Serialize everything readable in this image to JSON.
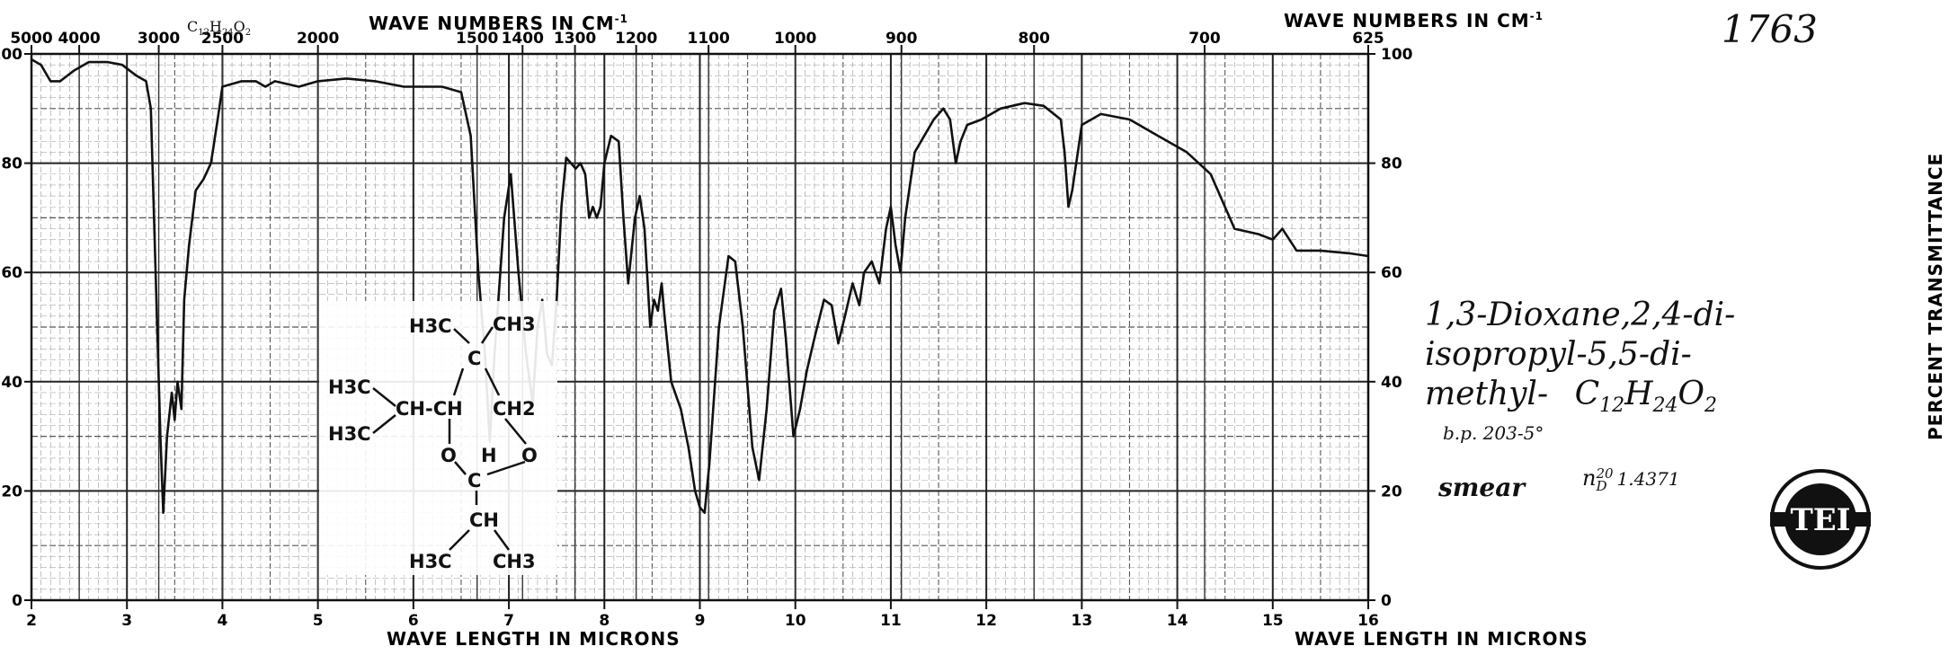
{
  "spectrum_number": "1763",
  "formula_header": {
    "main": "C",
    "s1": "12",
    "h": "H",
    "s2": "24",
    "o": "O",
    "s3": "2"
  },
  "top_axis_title": "WAVE NUMBERS IN CM",
  "top_axis_sup": "-1",
  "bottom_axis_title": "WAVE LENGTH IN MICRONS",
  "right_axis_title": "PERCENT TRANSMITTANCE",
  "compound": {
    "line1": "1,3-Dioxane,2,4-di-",
    "line2": "isopropyl-5,5-di-",
    "line3_prefix": "methyl-",
    "formula_c": "C",
    "formula_c_sub": "12",
    "formula_h": "H",
    "formula_h_sub": "24",
    "formula_o": "O",
    "formula_o_sub": "2",
    "bp": "b.p. 203-5°",
    "sample": "smear",
    "n_label": "n",
    "n_sup": "20",
    "n_sub": "D",
    "n_value": "1.4371"
  },
  "structure": {
    "top_left": "H3C",
    "top_right": "CH3",
    "center_c": "C",
    "left_upper": "H3C",
    "left_lower": "H3C",
    "ring_left": "CH-CH",
    "ring_right": "CH2",
    "o_left": "O",
    "o_right": "O",
    "acetal_h": "H",
    "acetal_c": "C",
    "lower_ch": "CH",
    "bottom_left": "H3C",
    "bottom_right": "CH3"
  },
  "badge_text": "TEI",
  "chart_data": {
    "type": "line",
    "xlabel": "WAVE LENGTH IN MICRONS",
    "ylabel": "PERCENT TRANSMITTANCE",
    "xlim": [
      2,
      16
    ],
    "ylim": [
      0,
      100
    ],
    "x_ticks": [
      "2",
      "3",
      "4",
      "5",
      "6",
      "7",
      "8",
      "9",
      "10",
      "11",
      "12",
      "13",
      "14",
      "15",
      "16"
    ],
    "y_ticks": [
      "0",
      "20",
      "40",
      "60",
      "80",
      "100"
    ],
    "top_ticks": [
      {
        "label": "5000",
        "um": 2.0
      },
      {
        "label": "4000",
        "um": 2.5
      },
      {
        "label": "3000",
        "um": 3.333
      },
      {
        "label": "2500",
        "um": 4.0
      },
      {
        "label": "2000",
        "um": 5.0
      },
      {
        "label": "1500",
        "um": 6.667
      },
      {
        "label": "1400",
        "um": 7.143
      },
      {
        "label": "1300",
        "um": 7.692
      },
      {
        "label": "1200",
        "um": 8.333
      },
      {
        "label": "1100",
        "um": 9.091
      },
      {
        "label": "1000",
        "um": 10.0
      },
      {
        "label": "900",
        "um": 11.111
      },
      {
        "label": "800",
        "um": 12.5
      },
      {
        "label": "700",
        "um": 14.286
      },
      {
        "label": "625",
        "um": 16.0
      }
    ],
    "grid": true,
    "series": [
      {
        "points": [
          [
            2.0,
            99
          ],
          [
            2.1,
            98
          ],
          [
            2.2,
            95
          ],
          [
            2.3,
            95
          ],
          [
            2.45,
            97
          ],
          [
            2.6,
            98.5
          ],
          [
            2.8,
            98.5
          ],
          [
            2.95,
            98
          ],
          [
            3.1,
            96
          ],
          [
            3.2,
            95
          ],
          [
            3.25,
            90
          ],
          [
            3.3,
            60
          ],
          [
            3.35,
            30
          ],
          [
            3.38,
            16
          ],
          [
            3.42,
            30
          ],
          [
            3.47,
            38
          ],
          [
            3.5,
            33
          ],
          [
            3.53,
            40
          ],
          [
            3.57,
            35
          ],
          [
            3.6,
            55
          ],
          [
            3.65,
            65
          ],
          [
            3.72,
            75
          ],
          [
            3.8,
            77
          ],
          [
            3.88,
            80
          ],
          [
            3.95,
            88
          ],
          [
            4.0,
            94
          ],
          [
            4.2,
            95
          ],
          [
            4.35,
            95
          ],
          [
            4.45,
            94
          ],
          [
            4.55,
            95
          ],
          [
            4.8,
            94
          ],
          [
            5.0,
            95
          ],
          [
            5.3,
            95.5
          ],
          [
            5.6,
            95
          ],
          [
            5.9,
            94
          ],
          [
            6.1,
            94
          ],
          [
            6.3,
            94
          ],
          [
            6.5,
            93
          ],
          [
            6.6,
            85
          ],
          [
            6.68,
            60
          ],
          [
            6.75,
            45
          ],
          [
            6.8,
            29
          ],
          [
            6.85,
            45
          ],
          [
            6.95,
            70
          ],
          [
            7.02,
            78
          ],
          [
            7.1,
            60
          ],
          [
            7.18,
            45
          ],
          [
            7.25,
            36
          ],
          [
            7.3,
            50
          ],
          [
            7.35,
            55
          ],
          [
            7.4,
            45
          ],
          [
            7.45,
            43
          ],
          [
            7.5,
            55
          ],
          [
            7.55,
            72
          ],
          [
            7.6,
            81
          ],
          [
            7.7,
            79
          ],
          [
            7.75,
            80
          ],
          [
            7.8,
            78
          ],
          [
            7.84,
            70
          ],
          [
            7.88,
            72
          ],
          [
            7.92,
            70
          ],
          [
            7.96,
            72
          ],
          [
            8.0,
            80
          ],
          [
            8.07,
            85
          ],
          [
            8.15,
            84
          ],
          [
            8.2,
            70
          ],
          [
            8.25,
            58
          ],
          [
            8.32,
            70
          ],
          [
            8.37,
            74
          ],
          [
            8.42,
            68
          ],
          [
            8.48,
            50
          ],
          [
            8.52,
            55
          ],
          [
            8.56,
            53
          ],
          [
            8.6,
            58
          ],
          [
            8.63,
            52
          ],
          [
            8.7,
            40
          ],
          [
            8.8,
            35
          ],
          [
            8.88,
            28
          ],
          [
            8.95,
            20
          ],
          [
            9.0,
            17
          ],
          [
            9.05,
            16
          ],
          [
            9.1,
            25
          ],
          [
            9.2,
            50
          ],
          [
            9.3,
            63
          ],
          [
            9.37,
            62
          ],
          [
            9.45,
            50
          ],
          [
            9.55,
            28
          ],
          [
            9.62,
            22
          ],
          [
            9.7,
            35
          ],
          [
            9.78,
            53
          ],
          [
            9.85,
            57
          ],
          [
            9.9,
            48
          ],
          [
            9.98,
            30
          ],
          [
            10.05,
            35
          ],
          [
            10.12,
            42
          ],
          [
            10.2,
            48
          ],
          [
            10.3,
            55
          ],
          [
            10.38,
            54
          ],
          [
            10.45,
            47
          ],
          [
            10.52,
            52
          ],
          [
            10.6,
            58
          ],
          [
            10.67,
            54
          ],
          [
            10.72,
            60
          ],
          [
            10.8,
            62
          ],
          [
            10.88,
            58
          ],
          [
            10.95,
            68
          ],
          [
            11.0,
            72
          ],
          [
            11.05,
            65
          ],
          [
            11.1,
            60
          ],
          [
            11.15,
            70
          ],
          [
            11.25,
            82
          ],
          [
            11.35,
            85
          ],
          [
            11.45,
            88
          ],
          [
            11.55,
            90
          ],
          [
            11.62,
            88
          ],
          [
            11.68,
            80
          ],
          [
            11.73,
            84
          ],
          [
            11.8,
            87
          ],
          [
            11.95,
            88
          ],
          [
            12.15,
            90
          ],
          [
            12.4,
            91
          ],
          [
            12.6,
            90.5
          ],
          [
            12.78,
            88
          ],
          [
            12.82,
            82
          ],
          [
            12.86,
            72
          ],
          [
            12.9,
            75
          ],
          [
            13.0,
            87
          ],
          [
            13.2,
            89
          ],
          [
            13.5,
            88
          ],
          [
            13.8,
            85
          ],
          [
            14.1,
            82
          ],
          [
            14.35,
            78
          ],
          [
            14.6,
            68
          ],
          [
            14.85,
            67
          ],
          [
            15.0,
            66
          ],
          [
            15.1,
            68
          ],
          [
            15.25,
            64
          ],
          [
            15.5,
            64
          ],
          [
            15.8,
            63.5
          ],
          [
            16.0,
            63
          ]
        ]
      }
    ]
  }
}
